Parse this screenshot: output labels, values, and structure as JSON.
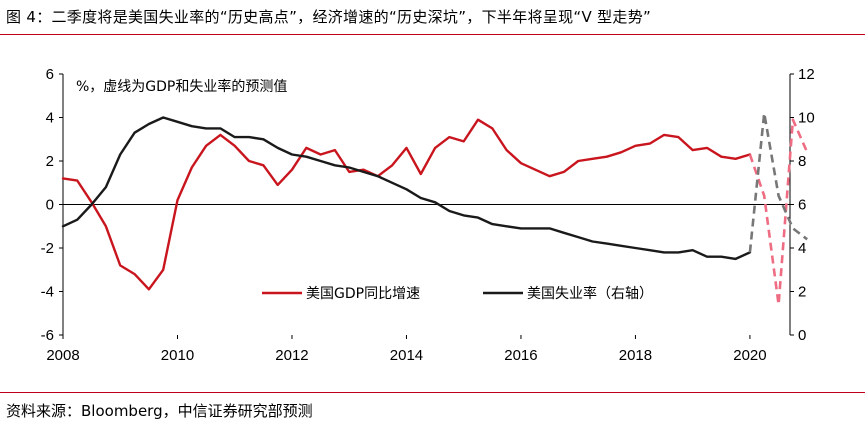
{
  "figure": {
    "title": "图 4：二季度将是美国失业率的“历史高点”，经济增速的“历史深坑”，下半年将呈现“V 型走势”",
    "source": "资料来源：Bloomberg，中信证券研究部预测",
    "accent_color": "#c0001b"
  },
  "chart_data": {
    "type": "line",
    "title": "图 4：二季度将是美国失业率的“历史高点”，经济增速的“历史深坑”，下半年将呈现“V 型走势”",
    "note": "%，虚线为GDP和失业率的预测值",
    "xlabel": "",
    "x_ticks": [
      "2008",
      "2010",
      "2012",
      "2014",
      "2016",
      "2018",
      "2020"
    ],
    "xlim": [
      2008,
      2020.7
    ],
    "ylim_left": [
      -6,
      6
    ],
    "y_ticks_left": [
      "6",
      "4",
      "2",
      "0",
      "-2",
      "-4",
      "-6"
    ],
    "ylim_right": [
      0,
      12
    ],
    "y_ticks_right": [
      "12",
      "10",
      "8",
      "6",
      "4",
      "2",
      "0"
    ],
    "legend_position": "bottom-center",
    "series": [
      {
        "name": "美国GDP同比增速",
        "axis": "left",
        "color": "#c9151e",
        "points": [
          [
            2008.0,
            1.2
          ],
          [
            2008.25,
            1.1
          ],
          [
            2008.5,
            0.1
          ],
          [
            2008.75,
            -1.0
          ],
          [
            2009.0,
            -2.8
          ],
          [
            2009.25,
            -3.2
          ],
          [
            2009.5,
            -3.9
          ],
          [
            2009.75,
            -3.0
          ],
          [
            2010.0,
            0.2
          ],
          [
            2010.25,
            1.7
          ],
          [
            2010.5,
            2.7
          ],
          [
            2010.75,
            3.2
          ],
          [
            2011.0,
            2.7
          ],
          [
            2011.25,
            2.0
          ],
          [
            2011.5,
            1.8
          ],
          [
            2011.75,
            0.9
          ],
          [
            2012.0,
            1.6
          ],
          [
            2012.25,
            2.6
          ],
          [
            2012.5,
            2.3
          ],
          [
            2012.75,
            2.5
          ],
          [
            2013.0,
            1.5
          ],
          [
            2013.25,
            1.6
          ],
          [
            2013.5,
            1.3
          ],
          [
            2013.75,
            1.8
          ],
          [
            2014.0,
            2.6
          ],
          [
            2014.25,
            1.4
          ],
          [
            2014.5,
            2.6
          ],
          [
            2014.75,
            3.1
          ],
          [
            2015.0,
            2.9
          ],
          [
            2015.25,
            3.9
          ],
          [
            2015.5,
            3.5
          ],
          [
            2015.75,
            2.5
          ],
          [
            2016.0,
            1.9
          ],
          [
            2016.25,
            1.6
          ],
          [
            2016.5,
            1.3
          ],
          [
            2016.75,
            1.5
          ],
          [
            2017.0,
            2.0
          ],
          [
            2017.25,
            2.1
          ],
          [
            2017.5,
            2.2
          ],
          [
            2017.75,
            2.4
          ],
          [
            2018.0,
            2.7
          ],
          [
            2018.25,
            2.8
          ],
          [
            2018.5,
            3.2
          ],
          [
            2018.75,
            3.1
          ],
          [
            2019.0,
            2.5
          ],
          [
            2019.25,
            2.6
          ],
          [
            2019.5,
            2.2
          ],
          [
            2019.75,
            2.1
          ],
          [
            2020.0,
            2.3
          ]
        ]
      },
      {
        "name": "美国GDP同比增速（预测）",
        "axis": "left",
        "color": "#ee6d83",
        "dashed": true,
        "points": [
          [
            2020.0,
            2.3
          ],
          [
            2020.25,
            0.4
          ],
          [
            2020.5,
            -4.6
          ],
          [
            2020.75,
            3.9
          ],
          [
            2021.0,
            2.4
          ]
        ]
      },
      {
        "name": "美国失业率（右轴）",
        "axis": "right",
        "color": "#1a1a1a",
        "points": [
          [
            2008.0,
            5.0
          ],
          [
            2008.25,
            5.3
          ],
          [
            2008.5,
            6.0
          ],
          [
            2008.75,
            6.8
          ],
          [
            2009.0,
            8.3
          ],
          [
            2009.25,
            9.3
          ],
          [
            2009.5,
            9.7
          ],
          [
            2009.75,
            10.0
          ],
          [
            2010.0,
            9.8
          ],
          [
            2010.25,
            9.6
          ],
          [
            2010.5,
            9.5
          ],
          [
            2010.75,
            9.5
          ],
          [
            2011.0,
            9.1
          ],
          [
            2011.25,
            9.1
          ],
          [
            2011.5,
            9.0
          ],
          [
            2011.75,
            8.6
          ],
          [
            2012.0,
            8.3
          ],
          [
            2012.25,
            8.2
          ],
          [
            2012.5,
            8.0
          ],
          [
            2012.75,
            7.8
          ],
          [
            2013.0,
            7.7
          ],
          [
            2013.25,
            7.5
          ],
          [
            2013.5,
            7.3
          ],
          [
            2013.75,
            7.0
          ],
          [
            2014.0,
            6.7
          ],
          [
            2014.25,
            6.3
          ],
          [
            2014.5,
            6.1
          ],
          [
            2014.75,
            5.7
          ],
          [
            2015.0,
            5.5
          ],
          [
            2015.25,
            5.4
          ],
          [
            2015.5,
            5.1
          ],
          [
            2015.75,
            5.0
          ],
          [
            2016.0,
            4.9
          ],
          [
            2016.25,
            4.9
          ],
          [
            2016.5,
            4.9
          ],
          [
            2016.75,
            4.7
          ],
          [
            2017.0,
            4.5
          ],
          [
            2017.25,
            4.3
          ],
          [
            2017.5,
            4.2
          ],
          [
            2017.75,
            4.1
          ],
          [
            2018.0,
            4.0
          ],
          [
            2018.25,
            3.9
          ],
          [
            2018.5,
            3.8
          ],
          [
            2018.75,
            3.8
          ],
          [
            2019.0,
            3.9
          ],
          [
            2019.25,
            3.6
          ],
          [
            2019.5,
            3.6
          ],
          [
            2019.75,
            3.5
          ],
          [
            2020.0,
            3.8
          ]
        ]
      },
      {
        "name": "美国失业率（预测）",
        "axis": "right",
        "color": "#777777",
        "dashed": true,
        "points": [
          [
            2020.0,
            3.8
          ],
          [
            2020.25,
            10.2
          ],
          [
            2020.5,
            6.4
          ],
          [
            2020.75,
            4.9
          ],
          [
            2021.0,
            4.4
          ]
        ]
      }
    ],
    "legend": [
      {
        "label": "美国GDP同比增速",
        "color": "#c9151e"
      },
      {
        "label": "美国失业率（右轴）",
        "color": "#1a1a1a"
      }
    ]
  }
}
